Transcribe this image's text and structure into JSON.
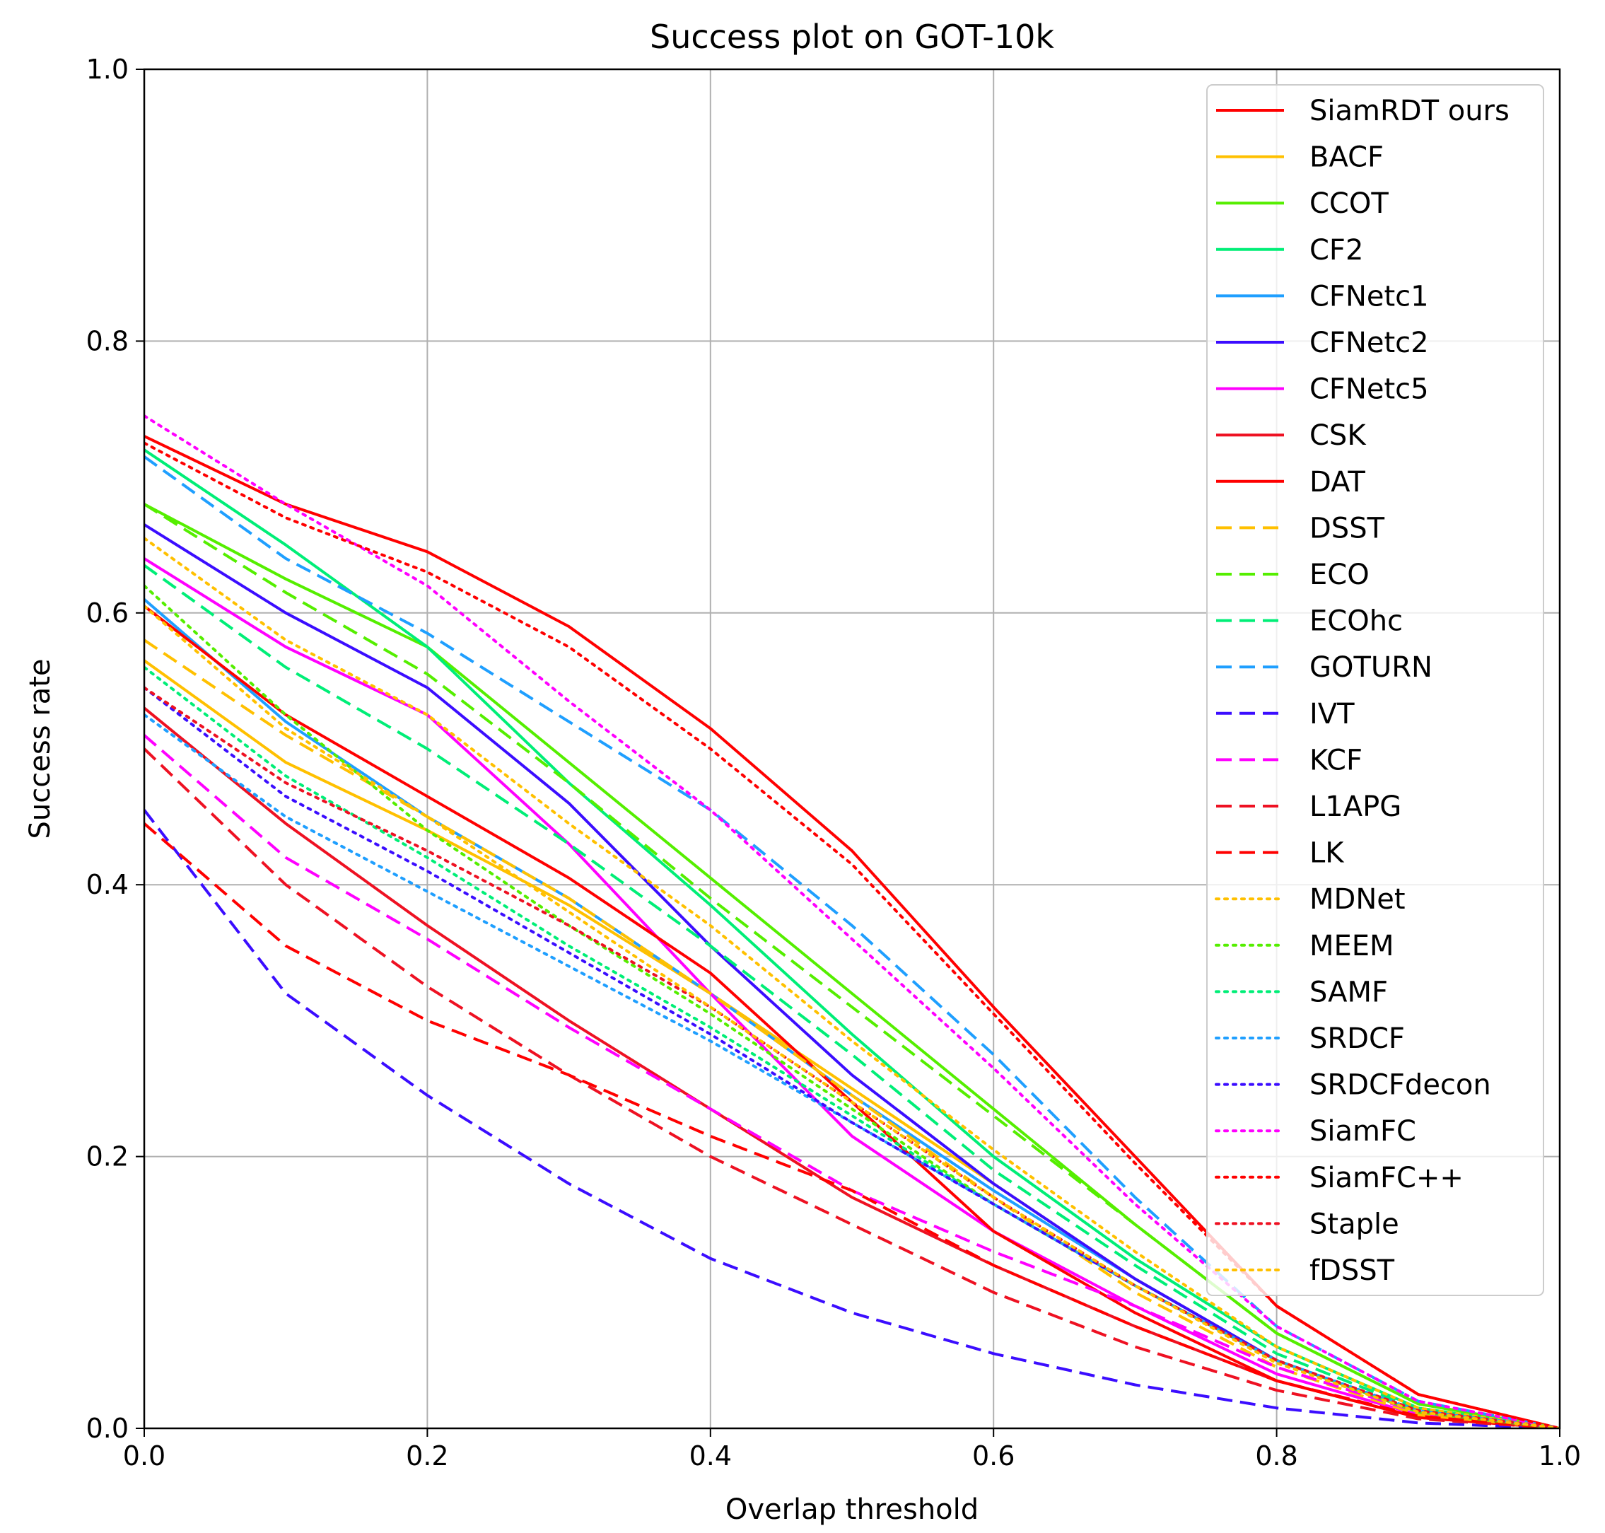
{
  "chart_data": {
    "type": "line",
    "title": "Success plot on GOT-10k",
    "xlabel": "Overlap threshold",
    "ylabel": "Success rate",
    "xlim": [
      0,
      1
    ],
    "ylim": [
      0,
      1
    ],
    "grid": true,
    "legend_position": "top-right",
    "x": [
      0,
      0.1,
      0.2,
      0.3,
      0.4,
      0.5,
      0.6,
      0.7,
      0.8,
      0.9,
      1.0
    ],
    "xticks": [
      "0.0",
      "0.2",
      "0.4",
      "0.6",
      "0.8",
      "1.0"
    ],
    "yticks": [
      "0.0",
      "0.2",
      "0.4",
      "0.6",
      "0.8",
      "1.0"
    ],
    "series": [
      {
        "name": "SiamRDT ours",
        "color": "#ff0000",
        "dash": "solid",
        "values": [
          0.73,
          0.68,
          0.645,
          0.59,
          0.515,
          0.425,
          0.31,
          0.2,
          0.09,
          0.025,
          0.0
        ]
      },
      {
        "name": "BACF",
        "color": "#ffc000",
        "dash": "solid",
        "values": [
          0.565,
          0.49,
          0.44,
          0.385,
          0.32,
          0.25,
          0.18,
          0.11,
          0.05,
          0.012,
          0.0
        ]
      },
      {
        "name": "CCOT",
        "color": "#55ee00",
        "dash": "solid",
        "values": [
          0.68,
          0.625,
          0.575,
          0.49,
          0.405,
          0.32,
          0.235,
          0.15,
          0.07,
          0.018,
          0.0
        ]
      },
      {
        "name": "CF2",
        "color": "#00ee77",
        "dash": "solid",
        "values": [
          0.72,
          0.65,
          0.575,
          0.475,
          0.385,
          0.29,
          0.2,
          0.125,
          0.06,
          0.015,
          0.0
        ]
      },
      {
        "name": "CFNetc1",
        "color": "#1f9fff",
        "dash": "solid",
        "values": [
          0.61,
          0.52,
          0.45,
          0.39,
          0.32,
          0.245,
          0.175,
          0.11,
          0.05,
          0.012,
          0.0
        ]
      },
      {
        "name": "CFNetc2",
        "color": "#3b0dff",
        "dash": "solid",
        "values": [
          0.665,
          0.6,
          0.545,
          0.46,
          0.355,
          0.26,
          0.18,
          0.11,
          0.05,
          0.012,
          0.0
        ]
      },
      {
        "name": "CFNetc5",
        "color": "#ff00ff",
        "dash": "solid",
        "values": [
          0.64,
          0.575,
          0.525,
          0.43,
          0.32,
          0.215,
          0.145,
          0.09,
          0.04,
          0.01,
          0.0
        ]
      },
      {
        "name": "CSK",
        "color": "#ee1122",
        "dash": "solid",
        "values": [
          0.53,
          0.445,
          0.37,
          0.3,
          0.235,
          0.17,
          0.12,
          0.075,
          0.035,
          0.008,
          0.0
        ]
      },
      {
        "name": "DAT",
        "color": "#ff0000",
        "dash": "solid",
        "values": [
          0.605,
          0.525,
          0.465,
          0.405,
          0.335,
          0.24,
          0.145,
          0.085,
          0.035,
          0.008,
          0.0
        ]
      },
      {
        "name": "DSST",
        "color": "#ffc000",
        "dash": "dashed",
        "values": [
          0.58,
          0.51,
          0.45,
          0.39,
          0.32,
          0.245,
          0.17,
          0.1,
          0.045,
          0.01,
          0.0
        ]
      },
      {
        "name": "ECO",
        "color": "#55ee00",
        "dash": "dashed",
        "values": [
          0.68,
          0.615,
          0.555,
          0.475,
          0.39,
          0.31,
          0.23,
          0.15,
          0.07,
          0.018,
          0.0
        ]
      },
      {
        "name": "ECOhc",
        "color": "#00ee77",
        "dash": "dashed",
        "values": [
          0.635,
          0.56,
          0.5,
          0.43,
          0.355,
          0.275,
          0.19,
          0.12,
          0.055,
          0.014,
          0.0
        ]
      },
      {
        "name": "GOTURN",
        "color": "#1f9fff",
        "dash": "dashed",
        "values": [
          0.715,
          0.64,
          0.585,
          0.52,
          0.455,
          0.37,
          0.275,
          0.17,
          0.075,
          0.02,
          0.0
        ]
      },
      {
        "name": "IVT",
        "color": "#3b0dff",
        "dash": "dashed",
        "values": [
          0.455,
          0.32,
          0.245,
          0.18,
          0.125,
          0.085,
          0.055,
          0.032,
          0.015,
          0.004,
          0.0
        ]
      },
      {
        "name": "KCF",
        "color": "#ff00ff",
        "dash": "dashed",
        "values": [
          0.51,
          0.42,
          0.36,
          0.295,
          0.235,
          0.175,
          0.13,
          0.09,
          0.045,
          0.012,
          0.0
        ]
      },
      {
        "name": "L1APG",
        "color": "#ee1122",
        "dash": "dashed",
        "values": [
          0.5,
          0.4,
          0.325,
          0.26,
          0.2,
          0.15,
          0.1,
          0.06,
          0.028,
          0.007,
          0.0
        ]
      },
      {
        "name": "LK",
        "color": "#ff0000",
        "dash": "dashed",
        "values": [
          0.445,
          0.355,
          0.3,
          0.26,
          0.215,
          0.175,
          0.12,
          0.075,
          0.035,
          0.009,
          0.0
        ]
      },
      {
        "name": "MDNet",
        "color": "#ffc000",
        "dash": "dotted",
        "values": [
          0.655,
          0.58,
          0.525,
          0.445,
          0.37,
          0.285,
          0.205,
          0.13,
          0.06,
          0.015,
          0.0
        ]
      },
      {
        "name": "MEEM",
        "color": "#55ee00",
        "dash": "dotted",
        "values": [
          0.62,
          0.525,
          0.44,
          0.37,
          0.305,
          0.235,
          0.165,
          0.105,
          0.05,
          0.012,
          0.0
        ]
      },
      {
        "name": "SAMF",
        "color": "#00ee77",
        "dash": "dotted",
        "values": [
          0.56,
          0.48,
          0.42,
          0.355,
          0.295,
          0.23,
          0.165,
          0.105,
          0.05,
          0.013,
          0.0
        ]
      },
      {
        "name": "SRDCF",
        "color": "#1f9fff",
        "dash": "dotted",
        "values": [
          0.525,
          0.45,
          0.395,
          0.34,
          0.285,
          0.225,
          0.165,
          0.105,
          0.05,
          0.013,
          0.0
        ]
      },
      {
        "name": "SRDCFdecon",
        "color": "#3b0dff",
        "dash": "dotted",
        "values": [
          0.545,
          0.465,
          0.41,
          0.35,
          0.29,
          0.225,
          0.165,
          0.105,
          0.05,
          0.013,
          0.0
        ]
      },
      {
        "name": "SiamFC",
        "color": "#ff00ff",
        "dash": "dotted",
        "values": [
          0.745,
          0.68,
          0.62,
          0.535,
          0.455,
          0.36,
          0.265,
          0.165,
          0.075,
          0.02,
          0.0
        ]
      },
      {
        "name": "SiamFC++",
        "color": "#ff0000",
        "dash": "dotted",
        "values": [
          0.725,
          0.67,
          0.63,
          0.575,
          0.5,
          0.415,
          0.305,
          0.195,
          0.09,
          0.025,
          0.0
        ]
      },
      {
        "name": "Staple",
        "color": "#ee1122",
        "dash": "dotted",
        "values": [
          0.545,
          0.475,
          0.425,
          0.37,
          0.31,
          0.24,
          0.17,
          0.105,
          0.05,
          0.013,
          0.0
        ]
      },
      {
        "name": "fDSST",
        "color": "#ffc000",
        "dash": "dotted",
        "values": [
          0.605,
          0.515,
          0.45,
          0.38,
          0.31,
          0.24,
          0.17,
          0.105,
          0.048,
          0.012,
          0.0
        ]
      }
    ]
  }
}
